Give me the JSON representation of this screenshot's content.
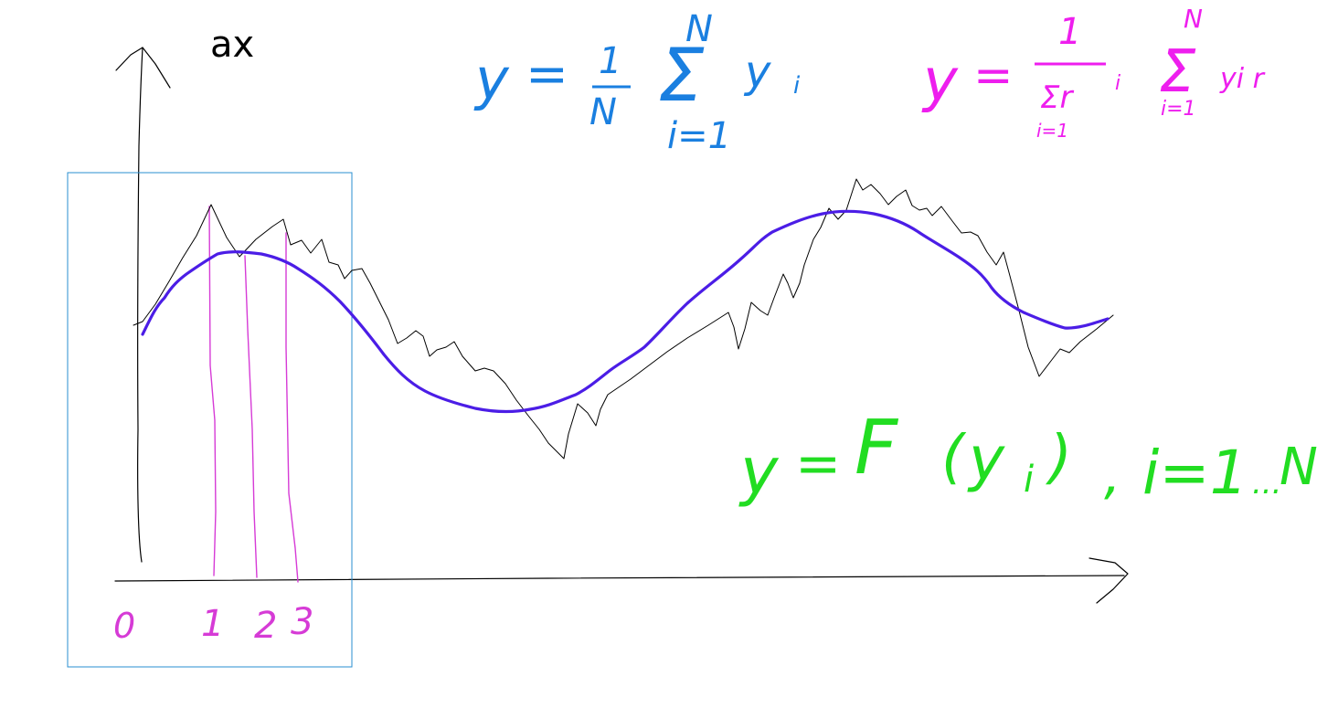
{
  "axis": {
    "y_label": "ax",
    "x_tick_labels": [
      "0",
      "1",
      "2",
      "3"
    ]
  },
  "formulas": {
    "mean": "y = (1/N) Σ_{i=1}^{N} y_i",
    "weighted_mean": "y = 1/(Σ_{i=1} r_i) Σ_{i=1}^{N} y_i r",
    "function": "y = F(y_i), i=1...N"
  },
  "colors": {
    "axes": "#000000",
    "raw_series": "#000000",
    "smoothed_series": "#4b1de6",
    "window_box": "#2a8fd0",
    "window_lines": "#d63bd6",
    "formula_mean": "#1a7fe0",
    "formula_weighted": "#ee1eee",
    "formula_function": "#22dd22"
  }
}
